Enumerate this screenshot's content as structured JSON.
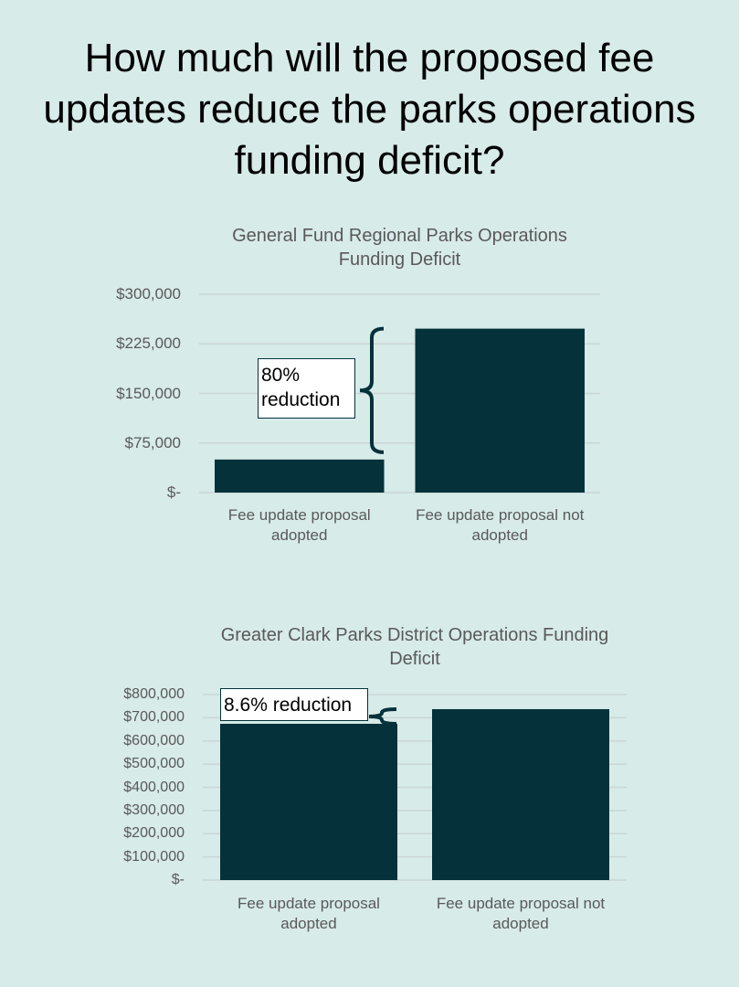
{
  "title": "How much will the proposed fee updates reduce the parks operations funding deficit?",
  "chart_data": [
    {
      "type": "bar",
      "title": "General Fund Regional Parks Operations Funding Deficit",
      "categories": [
        "Fee update proposal adopted",
        "Fee update proposal not adopted"
      ],
      "values": [
        50000,
        248000
      ],
      "color": "#05313a",
      "ylim": [
        0,
        300000
      ],
      "yticks": [
        {
          "value": 0,
          "label": "$-"
        },
        {
          "value": 75000,
          "label": "$75,000"
        },
        {
          "value": 150000,
          "label": "$150,000"
        },
        {
          "value": 225000,
          "label": "$225,000"
        },
        {
          "value": 300000,
          "label": "$300,000"
        }
      ],
      "grid": true,
      "annotation": "80% reduction"
    },
    {
      "type": "bar",
      "title": "Greater Clark Parks District Operations Funding Deficit",
      "categories": [
        "Fee update proposal adopted",
        "Fee update proposal not adopted"
      ],
      "values": [
        674000,
        737000
      ],
      "color": "#05313a",
      "ylim": [
        0,
        800000
      ],
      "yticks": [
        {
          "value": 0,
          "label": "$-"
        },
        {
          "value": 100000,
          "label": "$100,000"
        },
        {
          "value": 200000,
          "label": "$200,000"
        },
        {
          "value": 300000,
          "label": "$300,000"
        },
        {
          "value": 400000,
          "label": "$400,000"
        },
        {
          "value": 500000,
          "label": "$500,000"
        },
        {
          "value": 600000,
          "label": "$600,000"
        },
        {
          "value": 700000,
          "label": "$700,000"
        },
        {
          "value": 800000,
          "label": "$800,000"
        }
      ],
      "grid": true,
      "annotation": "8.6% reduction"
    }
  ]
}
